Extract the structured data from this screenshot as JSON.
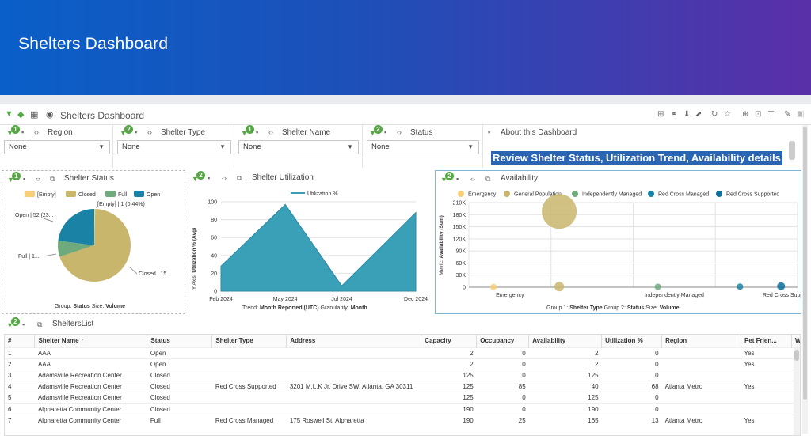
{
  "banner": {
    "title": "Shelters Dashboard"
  },
  "toolbar": {
    "title": "Shelters Dashboard"
  },
  "filters": [
    {
      "label": "Region",
      "value": "None",
      "badge": "1"
    },
    {
      "label": "Shelter Type",
      "value": "None",
      "badge": "2"
    },
    {
      "label": "Shelter Name",
      "value": "None",
      "badge": "1"
    },
    {
      "label": "Status",
      "value": "None",
      "badge": "2"
    }
  ],
  "about": {
    "label": "About this Dashboard",
    "text": "Review Shelter Status, Utilization Trend, Availability details"
  },
  "status_panel": {
    "title": "Shelter Status",
    "badge": "1",
    "legend": [
      "[Empty]",
      "Closed",
      "Full",
      "Open"
    ],
    "labels": {
      "empty": "[Empty] | 1 (0.44%)",
      "open": "Open | 52 (23...",
      "full": "Full | 1...",
      "closed": "Closed | 15..."
    },
    "footer": {
      "g_label": "Group:",
      "g_value": "Status",
      "s_label": "Size:",
      "s_value": "Volume"
    }
  },
  "util_panel": {
    "title": "Shelter Utilization",
    "badge": "2",
    "legend": "Utilization %",
    "ylabel_prefix": "Y Axis:",
    "ylabel_value": "Utilization % (Avg)",
    "footer": {
      "t_label": "Trend:",
      "t_value": "Month Reported (UTC)",
      "g_label": "Granularity:",
      "g_value": "Month"
    }
  },
  "avail_panel": {
    "title": "Availability",
    "badge": "2",
    "legend": [
      "Emergency",
      "General Population",
      "Independently Managed",
      "Red Cross Managed",
      "Red Cross Supported"
    ],
    "ylabel_prefix": "Metric:",
    "ylabel_value": "Availability (Sum)",
    "footer": {
      "g1_label": "Group 1:",
      "g1_value": "Shelter Type",
      "g2_label": "Group 2:",
      "g2_value": "Status",
      "s_label": "Size:",
      "s_value": "Volume"
    }
  },
  "list_panel": {
    "title": "SheltersList",
    "badge": "2"
  },
  "colors": {
    "empty": "#f7cf7a",
    "closed": "#c9b66d",
    "full": "#6faa7c",
    "open": "#1a82a5",
    "line": "#3aa0b8",
    "redcross_sup": "#0d6f9a"
  },
  "chart_data": [
    {
      "type": "pie",
      "title": "Shelter Status",
      "categories": [
        "[Empty]",
        "Closed",
        "Full",
        "Open"
      ],
      "values": [
        1,
        157,
        16,
        52
      ]
    },
    {
      "type": "area",
      "title": "Shelter Utilization",
      "x": [
        "Feb 2024",
        "May 2024",
        "Jul 2024",
        "Dec 2024"
      ],
      "values": [
        28,
        97,
        6,
        88
      ],
      "xticks": [
        "Feb 2024",
        "May 2024",
        "Jul 2024",
        "Dec 2024"
      ],
      "yticks": [
        "0",
        "20",
        "40",
        "60",
        "80",
        "100"
      ],
      "ylim": [
        0,
        100
      ]
    },
    {
      "type": "scatter",
      "title": "Availability",
      "categories": [
        "Emergency",
        "Independently Managed",
        "Red Cross Supported"
      ],
      "yticks": [
        "0",
        "30K",
        "60K",
        "90K",
        "120K",
        "150K",
        "180K",
        "210K"
      ],
      "ylim": [
        0,
        210000
      ],
      "points": [
        {
          "series": "Emergency",
          "x": 0.3,
          "y": 500,
          "size": 4
        },
        {
          "series": "General Population",
          "x": 1.1,
          "y": 188000,
          "size": 22
        },
        {
          "series": "General Population",
          "x": 1.1,
          "y": 1500,
          "size": 6
        },
        {
          "series": "Independently Managed",
          "x": 2.3,
          "y": 1000,
          "size": 4
        },
        {
          "series": "Red Cross Managed",
          "x": 3.3,
          "y": 1500,
          "size": 4
        },
        {
          "series": "Red Cross Supported",
          "x": 3.8,
          "y": 2500,
          "size": 5
        }
      ]
    }
  ],
  "table": {
    "headers": [
      "#",
      "Shelter Name ↑",
      "Status",
      "Shelter Type",
      "Address",
      "Capacity",
      "Occupancy",
      "Availability",
      "Utilization %",
      "Region",
      "Pet Frien...",
      "W"
    ],
    "rows": [
      [
        "1",
        "AAA",
        "Open",
        "",
        "",
        "2",
        "0",
        "2",
        "0",
        "",
        "Yes"
      ],
      [
        "2",
        "AAA",
        "Open",
        "",
        "",
        "2",
        "0",
        "2",
        "0",
        "",
        "Yes"
      ],
      [
        "3",
        "Adamsville Recreation Center",
        "Closed",
        "",
        "",
        "125",
        "0",
        "125",
        "0",
        "",
        ""
      ],
      [
        "4",
        "Adamsville Recreation Center",
        "Closed",
        "Red Cross Supported",
        "3201 M.L.K Jr. Drive SW, Atlanta, GA 30311",
        "125",
        "85",
        "40",
        "68",
        "Atlanta Metro",
        "Yes"
      ],
      [
        "5",
        "Adamsville Recreation Center",
        "Closed",
        "",
        "",
        "125",
        "0",
        "125",
        "0",
        "",
        ""
      ],
      [
        "6",
        "Alpharetta Community Center",
        "Closed",
        "",
        "",
        "190",
        "0",
        "190",
        "0",
        "",
        ""
      ],
      [
        "7",
        "Alpharetta Community Center",
        "Full",
        "Red Cross Managed",
        "175 Roswell St. Alpharetta",
        "190",
        "25",
        "165",
        "13",
        "Atlanta Metro",
        "Yes"
      ]
    ]
  }
}
